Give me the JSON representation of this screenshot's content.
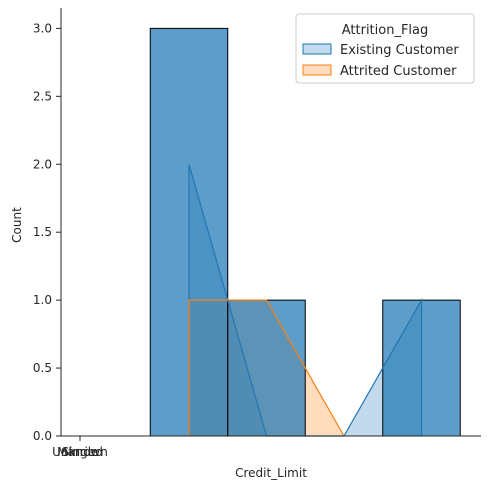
{
  "chart_data": {
    "type": "bar",
    "xlabel": "Credit_Limit",
    "ylabel": "Count",
    "ylim": [
      0,
      3.15
    ],
    "yticks": [
      0.0,
      0.5,
      1.0,
      1.5,
      2.0,
      2.5,
      3.0
    ],
    "ytick_labels": [
      "0.0",
      "0.5",
      "1.0",
      "1.5",
      "2.0",
      "2.5",
      "3.0"
    ],
    "xtick_labels": [
      "Unknown",
      "Married",
      "Single"
    ],
    "grid": false,
    "legend": {
      "title": "Attrition_Flag",
      "placement": "top-right",
      "entries": [
        "Existing Customer",
        "Attrited Customer"
      ]
    },
    "histogram": {
      "bins": [
        {
          "bin": 1,
          "count": 3
        },
        {
          "bin": 2,
          "count": 1
        },
        {
          "bin": 3,
          "count": 0
        },
        {
          "bin": 4,
          "count": 1
        }
      ]
    },
    "series": [
      {
        "name": "Existing Customer",
        "color": "#1f77b4",
        "points": [
          [
            1,
            0
          ],
          [
            1,
            2
          ],
          [
            2,
            0
          ],
          [
            3,
            0
          ],
          [
            4,
            1
          ],
          [
            4,
            0
          ]
        ]
      },
      {
        "name": "Attrited Customer",
        "color": "#ff7f0e",
        "points": [
          [
            1,
            0
          ],
          [
            1,
            1
          ],
          [
            2,
            1
          ],
          [
            3,
            0
          ]
        ]
      }
    ]
  }
}
